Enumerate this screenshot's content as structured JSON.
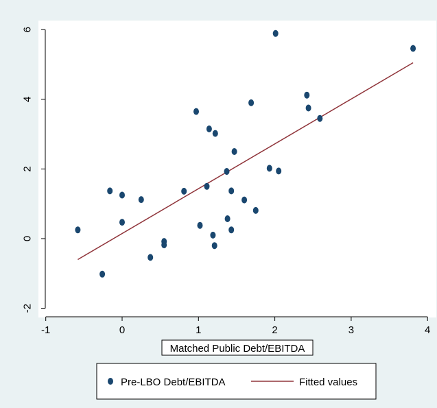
{
  "chart_data": {
    "type": "scatter",
    "xlabel": "Matched Public Debt/EBITDA",
    "ylabel": "",
    "xlim": [
      -1,
      4
    ],
    "ylim": [
      -2,
      6
    ],
    "x_ticks": [
      "-1",
      "0",
      "1",
      "2",
      "3",
      "4"
    ],
    "y_ticks": [
      "-2",
      "0",
      "2",
      "4",
      "6"
    ],
    "grid": false,
    "legend_position": "bottom",
    "series": [
      {
        "name": "Pre-LBO Debt/EBITDA",
        "kind": "scatter",
        "color": "#1a476f",
        "points": [
          [
            -0.58,
            0.25
          ],
          [
            -0.26,
            -1.02
          ],
          [
            -0.16,
            1.37
          ],
          [
            0.0,
            1.25
          ],
          [
            0.0,
            0.47
          ],
          [
            0.25,
            1.12
          ],
          [
            0.37,
            -0.54
          ],
          [
            0.55,
            -0.08
          ],
          [
            0.55,
            -0.18
          ],
          [
            0.81,
            1.36
          ],
          [
            0.97,
            3.65
          ],
          [
            1.02,
            0.38
          ],
          [
            1.11,
            1.5
          ],
          [
            1.14,
            3.15
          ],
          [
            1.19,
            0.1
          ],
          [
            1.21,
            -0.2
          ],
          [
            1.22,
            3.02
          ],
          [
            1.37,
            1.93
          ],
          [
            1.38,
            0.57
          ],
          [
            1.43,
            1.37
          ],
          [
            1.43,
            0.25
          ],
          [
            1.47,
            2.5
          ],
          [
            1.6,
            1.11
          ],
          [
            1.69,
            3.9
          ],
          [
            1.75,
            0.81
          ],
          [
            1.93,
            2.02
          ],
          [
            2.01,
            5.89
          ],
          [
            2.05,
            1.94
          ],
          [
            2.42,
            4.12
          ],
          [
            2.44,
            3.75
          ],
          [
            2.59,
            3.45
          ],
          [
            3.81,
            5.46
          ]
        ]
      },
      {
        "name": "Fitted values",
        "kind": "line",
        "color": "#90353b",
        "points": [
          [
            -0.58,
            -0.6
          ],
          [
            3.81,
            5.05
          ]
        ]
      }
    ]
  }
}
